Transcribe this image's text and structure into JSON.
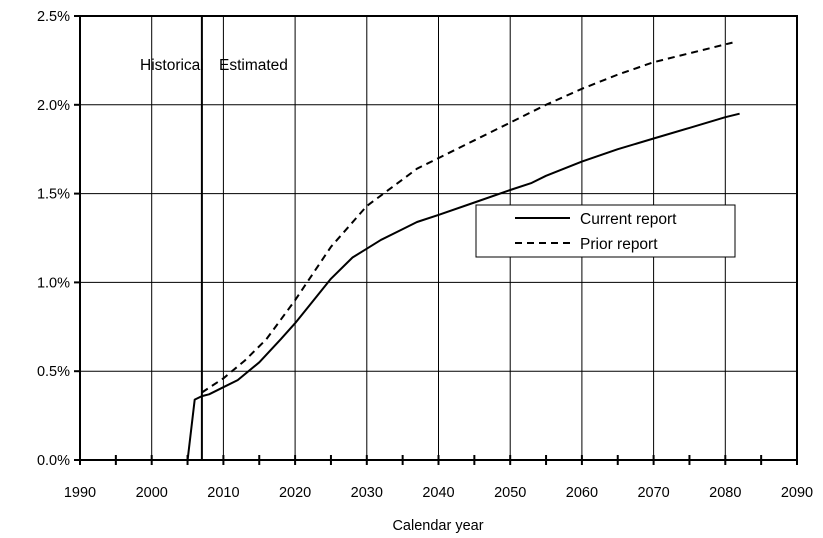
{
  "chart_data": {
    "type": "line",
    "title": "",
    "xlabel": "Calendar year",
    "ylabel": "",
    "xlim": [
      1990,
      2090
    ],
    "ylim": [
      0,
      0.025
    ],
    "x_ticks": [
      1990,
      2000,
      2010,
      2020,
      2030,
      2040,
      2050,
      2060,
      2070,
      2080,
      2090
    ],
    "x_tick_labels": [
      "1990",
      "2000",
      "2010",
      "2020",
      "2030",
      "2040",
      "2050",
      "2060",
      "2070",
      "2080",
      "2090"
    ],
    "y_ticks": [
      0,
      0.005,
      0.01,
      0.015,
      0.02,
      0.025
    ],
    "y_tick_labels": [
      "0.0%",
      "0.5%",
      "1.0%",
      "1.5%",
      "2.0%",
      "2.5%"
    ],
    "grid": true,
    "divider_year": 2007,
    "annotations": [
      "Historical",
      "Estimated"
    ],
    "legend": {
      "placement": "center-right",
      "entries": [
        "Current report",
        "Prior report"
      ]
    },
    "series": [
      {
        "name": "Current report",
        "style": "solid",
        "x": [
          2005,
          2006,
          2007,
          2008,
          2010,
          2012,
          2015,
          2018,
          2020,
          2022,
          2025,
          2028,
          2030,
          2032,
          2035,
          2037,
          2040,
          2045,
          2050,
          2053,
          2055,
          2060,
          2065,
          2070,
          2075,
          2080,
          2082
        ],
        "y": [
          0.0,
          0.0034,
          0.0036,
          0.0037,
          0.0041,
          0.0045,
          0.0055,
          0.0068,
          0.0077,
          0.0087,
          0.0102,
          0.0114,
          0.0119,
          0.0124,
          0.013,
          0.0134,
          0.0138,
          0.0145,
          0.0152,
          0.0156,
          0.016,
          0.0168,
          0.0175,
          0.0181,
          0.0187,
          0.0193,
          0.0195
        ]
      },
      {
        "name": "Prior report",
        "style": "dashed",
        "x": [
          2007,
          2010,
          2013,
          2016,
          2020,
          2025,
          2030,
          2035,
          2037,
          2040,
          2045,
          2050,
          2055,
          2060,
          2065,
          2070,
          2075,
          2081
        ],
        "y": [
          0.0038,
          0.0046,
          0.0056,
          0.0068,
          0.009,
          0.012,
          0.0143,
          0.0158,
          0.0164,
          0.017,
          0.018,
          0.019,
          0.02,
          0.0209,
          0.0217,
          0.0224,
          0.0229,
          0.0235
        ]
      }
    ]
  }
}
